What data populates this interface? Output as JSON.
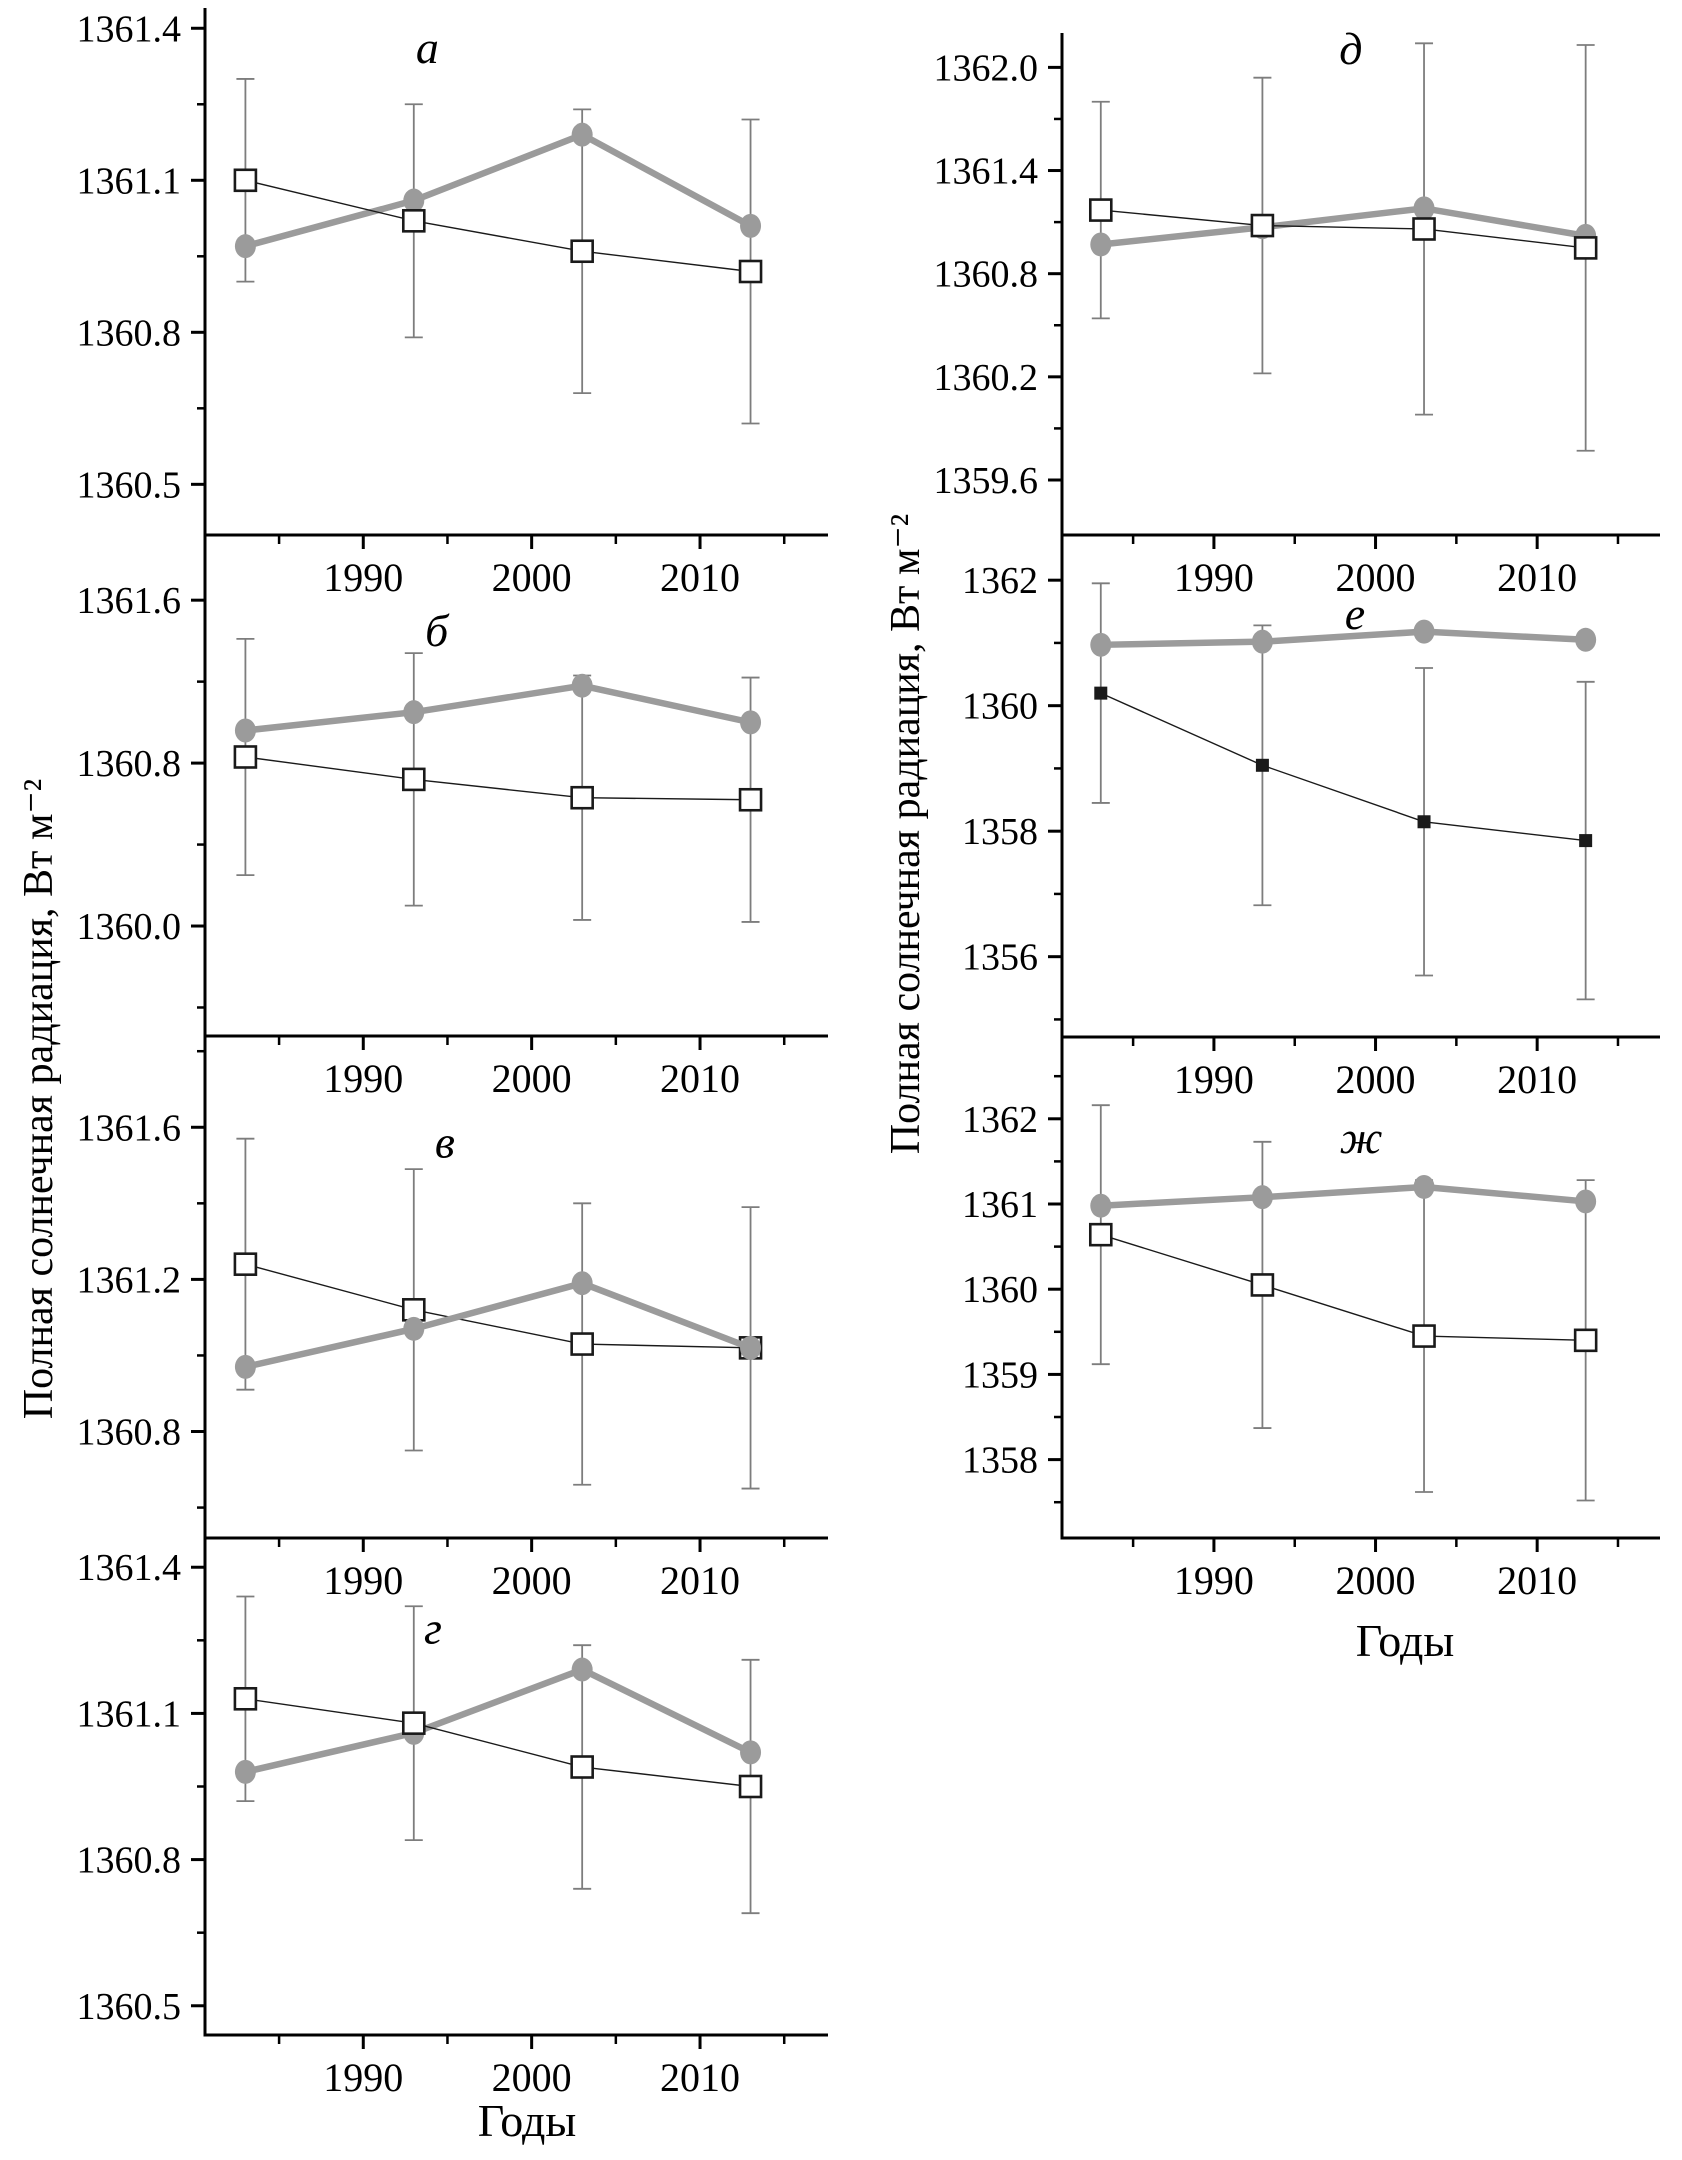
{
  "figure": {
    "y_axis_label_left": "Полная солнечная радиация, Вт м⁻²",
    "y_axis_label_right": "Полная солнечная радиация, Вт м⁻²",
    "x_axis_label_left": "Годы",
    "x_axis_label_right": "Годы"
  },
  "colors": {
    "background": "#ffffff",
    "axis": "#000000",
    "gray_series": "#9b9b9b",
    "black_series": "#1a1a1a",
    "open_square_fill": "#ffffff",
    "error_bar": "#7d7d7d",
    "text": "#000000"
  },
  "chart_data": [
    {
      "id": "a",
      "type": "line",
      "letter": "а",
      "letter_pos": [
        0.357,
        0.074
      ],
      "x": [
        1983,
        1993,
        2003,
        2013
      ],
      "xlim": [
        1980.6,
        2017.6
      ],
      "xticks": [
        1990,
        2000,
        2010
      ],
      "xtick_labels": [
        "1990",
        "2000",
        "2010"
      ],
      "xminor": [
        1985,
        1995,
        2005,
        2015
      ],
      "ylim": [
        1360.4,
        1361.44
      ],
      "yticks": [
        1361.4,
        1361.1,
        1360.8,
        1360.5
      ],
      "ytick_labels": [
        "1361.4",
        "1361.1",
        "1360.8",
        "1360.5"
      ],
      "yminor": [
        1361.25,
        1360.95,
        1360.65
      ],
      "series": [
        {
          "name": "gray-circle-series",
          "marker": "circle",
          "values": [
            1360.97,
            1361.06,
            1361.19,
            1361.01
          ]
        },
        {
          "name": "open-square-series",
          "marker": "open-square",
          "values": [
            1361.1,
            1361.02,
            1360.96,
            1360.92
          ],
          "err_lo": [
            1360.9,
            1360.79,
            1360.68,
            1360.62
          ],
          "err_hi": [
            1361.3,
            1361.25,
            1361.24,
            1361.22
          ]
        }
      ]
    },
    {
      "id": "b",
      "type": "line",
      "letter": "б",
      "letter_pos": [
        0.372,
        0.19
      ],
      "x": [
        1983,
        1993,
        2003,
        2013
      ],
      "xlim": [
        1980.6,
        2017.6
      ],
      "xticks": [
        1990,
        2000,
        2010
      ],
      "xtick_labels": [
        "1990",
        "2000",
        "2010"
      ],
      "xminor": [
        1985,
        1995,
        2005,
        2015
      ],
      "ylim": [
        1359.46,
        1361.92
      ],
      "yticks": [
        1361.6,
        1360.8,
        1360.0
      ],
      "ytick_labels": [
        "1361.6",
        "1360.8",
        "1360.0"
      ],
      "yminor": [
        1361.2,
        1360.4,
        1359.6
      ],
      "series": [
        {
          "name": "gray-circle-series",
          "marker": "circle",
          "values": [
            1360.96,
            1361.05,
            1361.18,
            1361.0
          ]
        },
        {
          "name": "open-square-series",
          "marker": "open-square",
          "values": [
            1360.83,
            1360.72,
            1360.63,
            1360.62
          ],
          "err_lo": [
            1360.25,
            1360.1,
            1360.03,
            1360.02
          ],
          "err_hi": [
            1361.41,
            1361.34,
            1361.23,
            1361.22
          ]
        }
      ]
    },
    {
      "id": "v",
      "type": "line",
      "letter": "в",
      "letter_pos": [
        0.385,
        0.21
      ],
      "circles_on_top": true,
      "x": [
        1983,
        1993,
        2003,
        2013
      ],
      "xlim": [
        1980.6,
        2017.6
      ],
      "xticks": [
        1990,
        2000,
        2010
      ],
      "xtick_labels": [
        "1990",
        "2000",
        "2010"
      ],
      "xminor": [
        1985,
        1995,
        2005,
        2015
      ],
      "ylim": [
        1360.52,
        1361.84
      ],
      "yticks": [
        1361.6,
        1361.2,
        1360.8
      ],
      "ytick_labels": [
        "1361.6",
        "1361.2",
        "1360.8"
      ],
      "yminor": [
        1361.8,
        1361.4,
        1361.0,
        1360.6
      ],
      "series": [
        {
          "name": "gray-circle-series",
          "marker": "circle",
          "values": [
            1360.97,
            1361.07,
            1361.19,
            1361.02
          ]
        },
        {
          "name": "open-square-series",
          "marker": "open-square",
          "values": [
            1361.24,
            1361.12,
            1361.03,
            1361.02
          ],
          "err_lo": [
            1360.91,
            1360.75,
            1360.66,
            1360.65
          ],
          "err_hi": [
            1361.57,
            1361.49,
            1361.4,
            1361.39
          ]
        }
      ]
    },
    {
      "id": "g",
      "type": "line",
      "letter": "г",
      "letter_pos": [
        0.366,
        0.18
      ],
      "x": [
        1983,
        1993,
        2003,
        2013
      ],
      "xlim": [
        1980.6,
        2017.6
      ],
      "xticks": [
        1990,
        2000,
        2010
      ],
      "xtick_labels": [
        "1990",
        "2000",
        "2010"
      ],
      "xminor": [
        1985,
        1995,
        2005,
        2015
      ],
      "ylim": [
        1360.44,
        1361.46
      ],
      "yticks": [
        1361.4,
        1361.1,
        1360.8,
        1360.5
      ],
      "ytick_labels": [
        "1361.4",
        "1361.1",
        "1360.8",
        "1360.5"
      ],
      "yminor": [
        1361.25,
        1360.95,
        1360.65
      ],
      "series": [
        {
          "name": "gray-circle-series",
          "marker": "circle",
          "values": [
            1360.98,
            1361.06,
            1361.19,
            1361.02
          ]
        },
        {
          "name": "open-square-series",
          "marker": "open-square",
          "values": [
            1361.13,
            1361.08,
            1360.99,
            1360.95
          ],
          "err_lo": [
            1360.92,
            1360.84,
            1360.74,
            1360.69
          ],
          "err_hi": [
            1361.34,
            1361.32,
            1361.24,
            1361.21
          ]
        }
      ]
    },
    {
      "id": "d",
      "type": "line",
      "letter": "д",
      "letter_pos": [
        0.483,
        0.03
      ],
      "x": [
        1983,
        1993,
        2003,
        2013
      ],
      "xlim": [
        1980.6,
        2017.6
      ],
      "xticks": [
        1990,
        2000,
        2010
      ],
      "xtick_labels": [
        "1990",
        "2000",
        "2010"
      ],
      "xminor": [
        1985,
        1995,
        2005,
        2015
      ],
      "ylim": [
        1359.28,
        1362.2
      ],
      "yticks": [
        1362.0,
        1361.4,
        1360.8,
        1360.2,
        1359.6
      ],
      "ytick_labels": [
        "1362.0",
        "1361.4",
        "1360.8",
        "1360.2",
        "1359.6"
      ],
      "yminor": [
        1361.7,
        1361.1,
        1360.5,
        1359.9
      ],
      "series": [
        {
          "name": "gray-circle-series",
          "marker": "circle",
          "values": [
            1360.97,
            1361.07,
            1361.18,
            1361.02
          ]
        },
        {
          "name": "open-square-series",
          "marker": "open-square",
          "values": [
            1361.17,
            1361.08,
            1361.06,
            1360.95
          ],
          "err_lo": [
            1360.54,
            1360.22,
            1359.98,
            1359.77
          ],
          "err_hi": [
            1361.8,
            1361.94,
            1362.14,
            1362.13
          ]
        }
      ]
    },
    {
      "id": "e",
      "type": "line",
      "letter": "е",
      "letter_pos": [
        0.49,
        0.155
      ],
      "x": [
        1983,
        1993,
        2003,
        2013
      ],
      "xlim": [
        1980.6,
        2017.6
      ],
      "xticks": [
        1990,
        2000,
        2010
      ],
      "xtick_labels": [
        "1990",
        "2000",
        "2010"
      ],
      "xminor": [
        1985,
        1995,
        2005,
        2015
      ],
      "ylim": [
        1354.72,
        1362.72
      ],
      "yticks": [
        1362,
        1360,
        1358,
        1356
      ],
      "ytick_labels": [
        "1362",
        "1360",
        "1358",
        "1356"
      ],
      "yminor": [
        1361,
        1359,
        1357,
        1355
      ],
      "series": [
        {
          "name": "gray-circle-series",
          "marker": "circle",
          "values": [
            1360.97,
            1361.02,
            1361.18,
            1361.05
          ]
        },
        {
          "name": "filled-square-series",
          "marker": "filled-square",
          "values": [
            1360.2,
            1359.05,
            1358.15,
            1357.85
          ],
          "err_lo": [
            1358.45,
            1356.82,
            1355.7,
            1355.32
          ],
          "err_hi": [
            1361.95,
            1361.28,
            1360.6,
            1360.38
          ]
        }
      ]
    },
    {
      "id": "zh",
      "type": "line",
      "letter": "ж",
      "letter_pos": [
        0.5,
        0.2
      ],
      "x": [
        1983,
        1993,
        2003,
        2013
      ],
      "xlim": [
        1980.6,
        2017.6
      ],
      "xticks": [
        1990,
        2000,
        2010
      ],
      "xtick_labels": [
        "1990",
        "2000",
        "2010"
      ],
      "xminor": [
        1985,
        1995,
        2005,
        2015
      ],
      "ylim": [
        1357.08,
        1362.96
      ],
      "yticks": [
        1362,
        1361,
        1360,
        1359,
        1358
      ],
      "ytick_labels": [
        "1362",
        "1361",
        "1360",
        "1359",
        "1358"
      ],
      "yminor": [
        1362.5,
        1361.5,
        1360.5,
        1359.5,
        1358.5,
        1357.5
      ],
      "series": [
        {
          "name": "gray-circle-series",
          "marker": "circle",
          "values": [
            1360.98,
            1361.08,
            1361.2,
            1361.03
          ]
        },
        {
          "name": "open-square-series",
          "marker": "open-square",
          "values": [
            1360.64,
            1360.05,
            1359.45,
            1359.4
          ],
          "err_lo": [
            1359.12,
            1358.37,
            1357.62,
            1357.52
          ],
          "err_hi": [
            1362.16,
            1361.73,
            1361.28,
            1361.28
          ]
        }
      ]
    }
  ]
}
